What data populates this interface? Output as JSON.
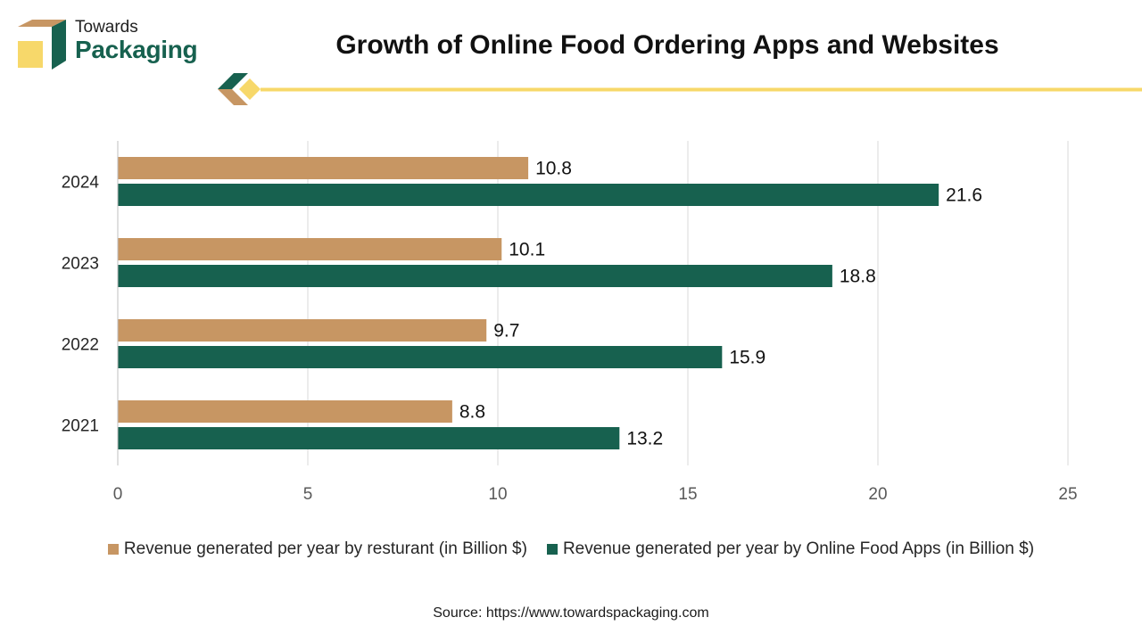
{
  "brand": {
    "line1": "Towards",
    "line2": "Packaging"
  },
  "title": "Growth of Online Food Ordering Apps and Websites",
  "source": "Source: https://www.towardspackaging.com",
  "colors": {
    "restaurant": "#c79663",
    "apps": "#17614f",
    "accent": "#f7d86a",
    "grid": "#d9d9d9"
  },
  "chart_data": {
    "type": "bar",
    "orientation": "horizontal",
    "categories": [
      "2024",
      "2023",
      "2022",
      "2021"
    ],
    "series": [
      {
        "name": "Revenue generated per year by resturant (in Billion $)",
        "values": [
          10.8,
          10.1,
          9.7,
          8.8
        ]
      },
      {
        "name": "Revenue generated per year by Online Food Apps (in Billion $)",
        "values": [
          21.6,
          18.8,
          15.9,
          13.2
        ]
      }
    ],
    "x_ticks": [
      0,
      5,
      10,
      15,
      20,
      25
    ],
    "xlim": [
      0,
      25
    ],
    "grid": true,
    "data_labels": true,
    "legend_position": "bottom"
  }
}
